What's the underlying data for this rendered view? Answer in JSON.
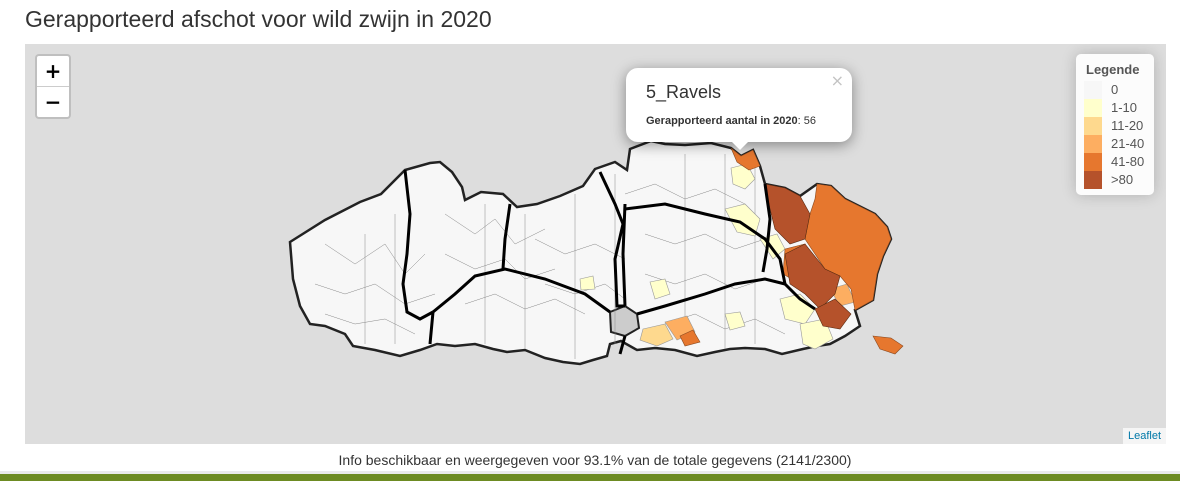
{
  "page": {
    "title": "Gerapporteerd afschot voor wild zwijn in 2020"
  },
  "zoom": {
    "in_label": "+",
    "out_label": "−"
  },
  "popup": {
    "title": "5_Ravels",
    "label": "Gerapporteerd aantal in 2020",
    "value": "56",
    "close": "×"
  },
  "legend": {
    "title": "Legende",
    "items": [
      {
        "label": "0",
        "color": "#f7f7f7"
      },
      {
        "label": "1-10",
        "color": "#ffffcc"
      },
      {
        "label": "11-20",
        "color": "#fed98e"
      },
      {
        "label": "21-40",
        "color": "#fdae61"
      },
      {
        "label": "41-80",
        "color": "#e6772e"
      },
      {
        "label": ">80",
        "color": "#b5522b"
      }
    ]
  },
  "attribution": "Leaflet",
  "info": "Info beschikbaar en weergegeven voor 93.1% van de totale gegevens (2141/2300)",
  "colors": {
    "map_background": "#dddddd",
    "footer_bar": "#6d8b22",
    "province_border": "#000000"
  }
}
